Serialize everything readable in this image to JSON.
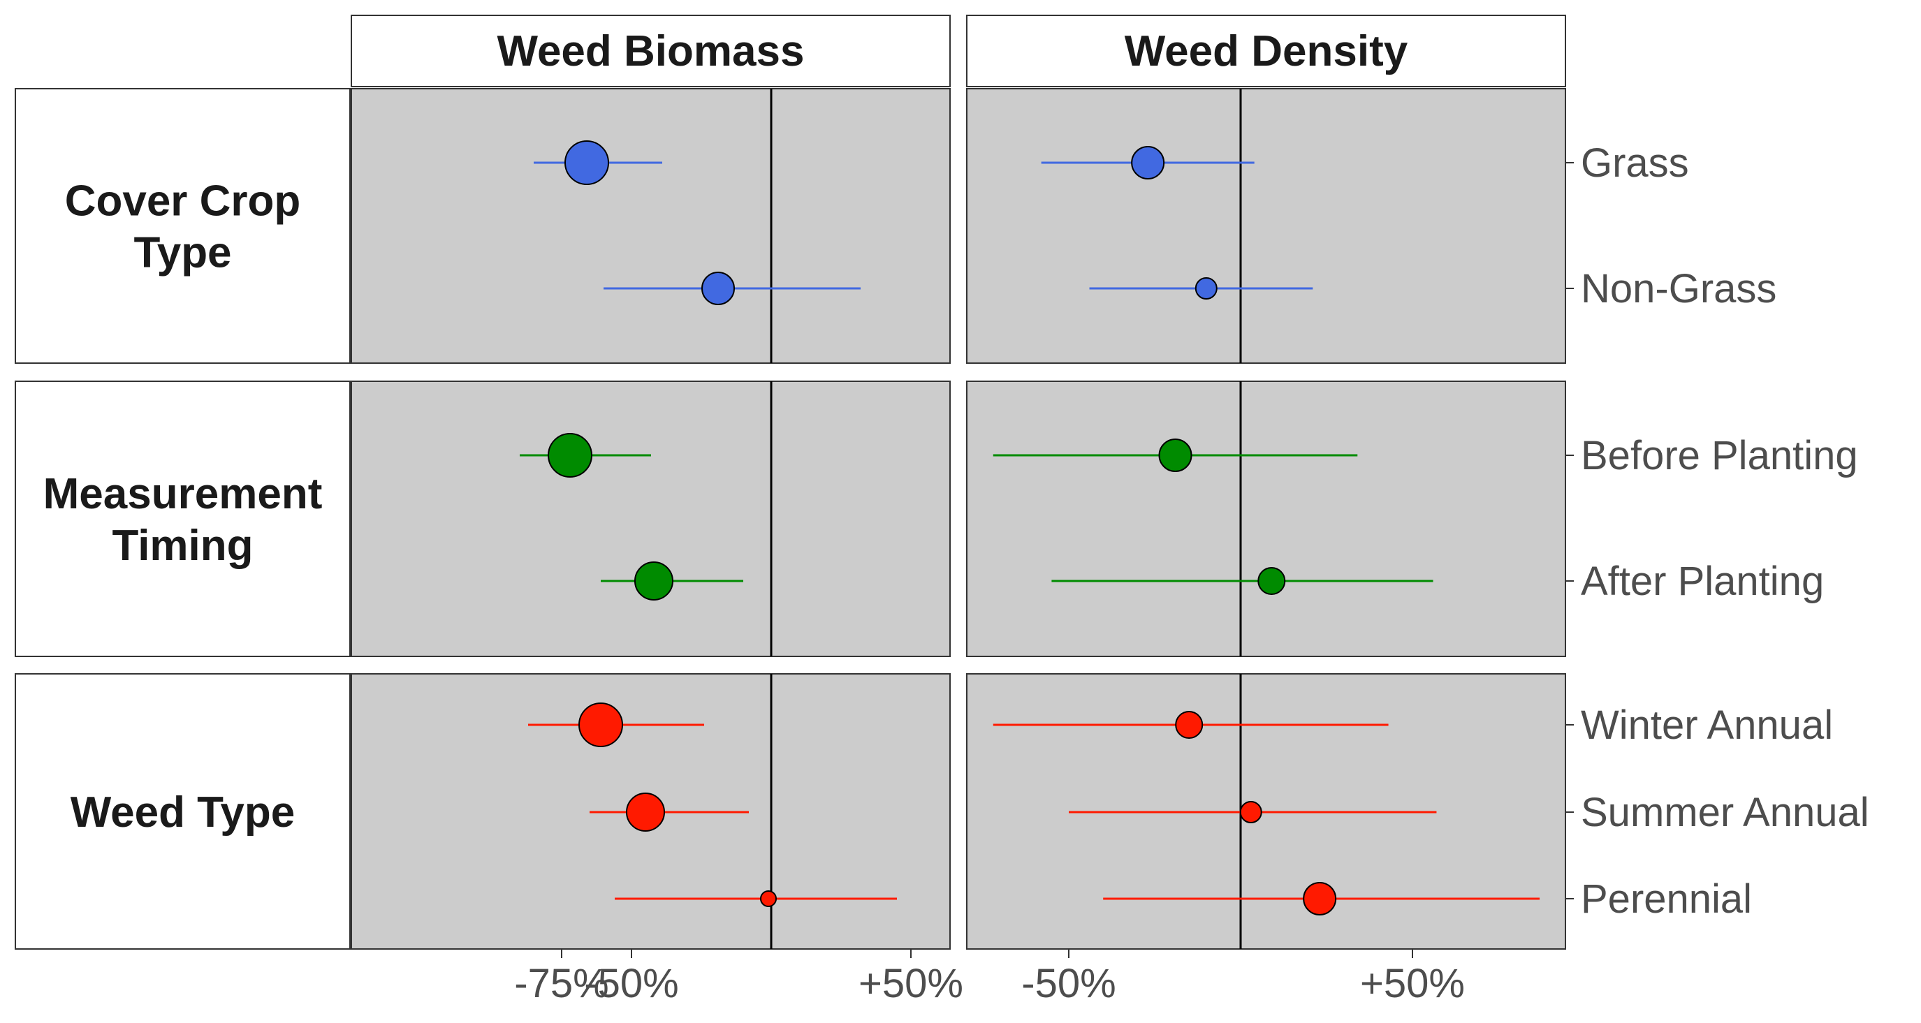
{
  "chart_data": {
    "type": "forest-plot",
    "column_headers": [
      "Weed Biomass",
      "Weed Density"
    ],
    "row_groups": [
      {
        "label": "Cover Crop\nType",
        "color": "#4169E1",
        "items": [
          {
            "label": "Grass",
            "biomass": {
              "est": -66,
              "lo": -85,
              "hi": -39,
              "n": 3
            },
            "density": {
              "est": -27,
              "lo": -58,
              "hi": 4,
              "n": 2
            }
          },
          {
            "label": "Non-Grass",
            "biomass": {
              "est": -19,
              "lo": -60,
              "hi": 32,
              "n": 2
            },
            "density": {
              "est": -10,
              "lo": -44,
              "hi": 21,
              "n": 1
            }
          }
        ]
      },
      {
        "label": "Measurement\nTiming",
        "color": "#008B00",
        "items": [
          {
            "label": "Before Planting",
            "biomass": {
              "est": -72,
              "lo": -90,
              "hi": -43,
              "n": 3
            },
            "density": {
              "est": -19,
              "lo": -72,
              "hi": 34,
              "n": 2
            }
          },
          {
            "label": "After Planting",
            "biomass": {
              "est": -42,
              "lo": -61,
              "hi": -10,
              "n": 2.5
            },
            "density": {
              "est": 9,
              "lo": -55,
              "hi": 56,
              "n": 1.5
            }
          }
        ]
      },
      {
        "label": "Weed Type",
        "color": "#FF1A00",
        "items": [
          {
            "label": "Winter Annual",
            "biomass": {
              "est": -61,
              "lo": -87,
              "hi": -24,
              "n": 3
            },
            "density": {
              "est": -15,
              "lo": -72,
              "hi": 43,
              "n": 1.5
            }
          },
          {
            "label": "Summer Annual",
            "biomass": {
              "est": -45,
              "lo": -65,
              "hi": -8,
              "n": 2.5
            },
            "density": {
              "est": 3,
              "lo": -50,
              "hi": 57,
              "n": 1
            }
          },
          {
            "label": "Perennial",
            "biomass": {
              "est": -1,
              "lo": -56,
              "hi": 45,
              "n": 0.5
            },
            "density": {
              "est": 23,
              "lo": -40,
              "hi": 87,
              "n": 2
            }
          }
        ]
      }
    ],
    "x_ticks": {
      "biomass": [
        {
          "value": -75,
          "label": "-75%"
        },
        {
          "value": -50,
          "label": "-50%"
        },
        {
          "value": 50,
          "label": "+50%"
        }
      ],
      "density": [
        {
          "value": -50,
          "label": "-50%"
        },
        {
          "value": 50,
          "label": "+50%"
        }
      ]
    },
    "reference_line": 0,
    "panel_background": "#CCCCCC",
    "grid": false
  }
}
